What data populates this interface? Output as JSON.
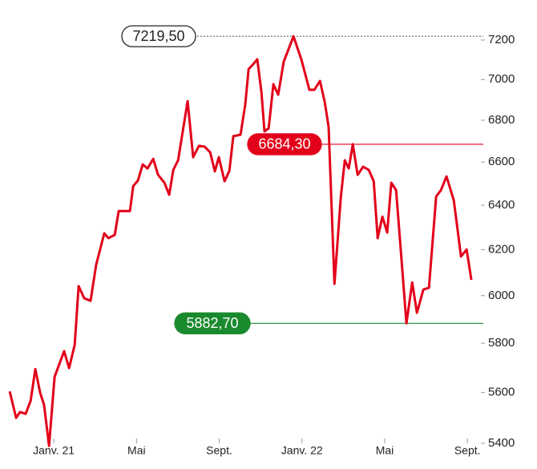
{
  "chart_data": {
    "type": "line",
    "log_scale_y": true,
    "color": "#e2001a",
    "x": [
      -2.13,
      -1.82,
      -1.63,
      -1.36,
      -1.12,
      -0.89,
      -0.66,
      -0.47,
      -0.23,
      0.04,
      0.5,
      0.74,
      1.01,
      1.2,
      1.47,
      1.78,
      2.05,
      2.44,
      2.64,
      2.95,
      3.14,
      3.68,
      3.84,
      4.07,
      4.3,
      4.53,
      4.81,
      5.04,
      5.35,
      5.58,
      5.78,
      6.01,
      6.47,
      6.74,
      7.02,
      7.29,
      7.56,
      7.79,
      7.98,
      8.26,
      8.49,
      8.68,
      9.03,
      9.26,
      9.42,
      9.65,
      9.84,
      10.04,
      10.19,
      10.39,
      10.62,
      10.85,
      11.12,
      11.59,
      11.98,
      12.36,
      12.6,
      12.87,
      13.1,
      13.29,
      13.57,
      13.88,
      14.07,
      14.26,
      14.46,
      14.69,
      14.96,
      15.23,
      15.47,
      15.66,
      15.89,
      16.12,
      16.32,
      16.55,
      16.74,
      17.05,
      17.33,
      17.56,
      17.87,
      18.14,
      18.49,
      18.72,
      18.99,
      19.34,
      19.69,
      19.96,
      20.19
    ],
    "values": [
      5604,
      5499,
      5522,
      5515,
      5566,
      5694,
      5598,
      5550,
      5390,
      5662,
      5767,
      5698,
      5793,
      6041,
      5989,
      5978,
      6134,
      6273,
      6251,
      6266,
      6373,
      6373,
      6488,
      6514,
      6589,
      6570,
      6615,
      6540,
      6503,
      6448,
      6563,
      6608,
      6893,
      6623,
      6677,
      6673,
      6646,
      6556,
      6623,
      6510,
      6559,
      6723,
      6730,
      6877,
      7053,
      7078,
      7102,
      6937,
      6746,
      6761,
      6977,
      6925,
      7090,
      7219.5,
      7098,
      6949,
      6949,
      6993,
      6890,
      6768,
      6051,
      6440,
      6608,
      6570,
      6684.3,
      6540,
      6578,
      6563,
      6510,
      6251,
      6348,
      6276,
      6503,
      6469,
      6241,
      5882.7,
      6057,
      5927,
      6026,
      6034,
      6440,
      6469,
      6533,
      6422,
      6170,
      6201,
      6068
    ],
    "xlim": [
      -2.6,
      21.0
    ],
    "xticks": [
      {
        "value": 0,
        "label": "Janv. 21"
      },
      {
        "value": 4,
        "label": "Mai"
      },
      {
        "value": 8,
        "label": "Sept."
      },
      {
        "value": 12,
        "label": "Janv. 22"
      },
      {
        "value": 16,
        "label": "Mai"
      },
      {
        "value": 20,
        "label": "Sept."
      }
    ],
    "ylim": [
      5400,
      7200
    ],
    "yticks": [
      5400,
      5600,
      5800,
      6000,
      6200,
      6400,
      6600,
      6800,
      7000,
      7200
    ],
    "annotations": [
      {
        "value": 7219.5,
        "label": "7219,50",
        "color": "#888888",
        "style": "dotted"
      },
      {
        "value": 6684.3,
        "label": "6684,30",
        "color": "#e2001a",
        "style": "solid"
      },
      {
        "value": 5882.7,
        "label": "5882,70",
        "color": "#1a8a2e",
        "style": "solid"
      }
    ]
  }
}
